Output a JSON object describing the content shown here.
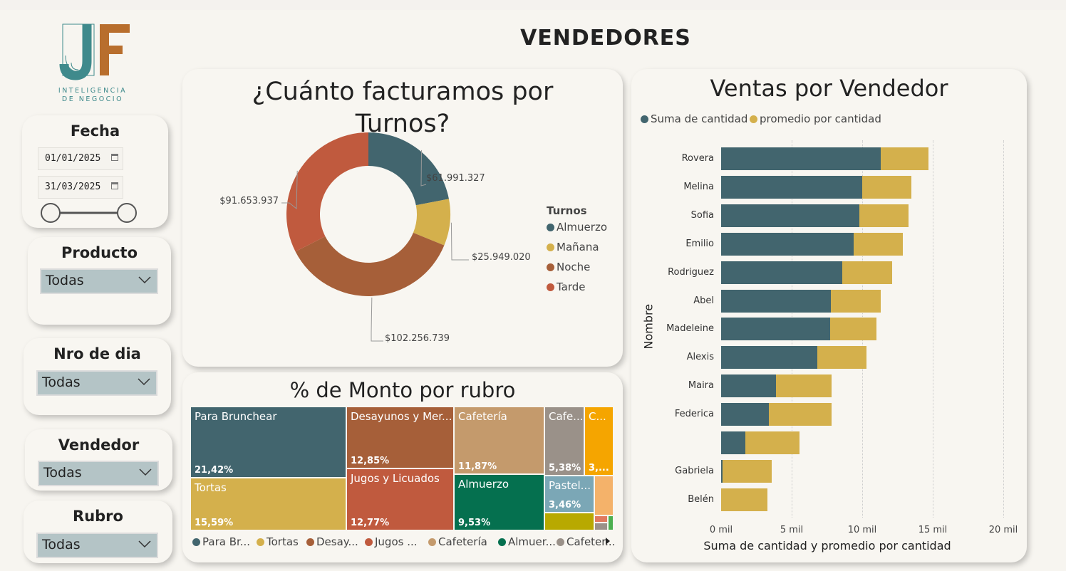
{
  "page_title": "VENDEDORES",
  "logo": {
    "line1": "INTELIGENCIA",
    "line2": "DE NEGOCIO",
    "letters": "JF"
  },
  "filters": {
    "fecha": {
      "title": "Fecha",
      "from": "01/01/2025",
      "to": "31/03/2025"
    },
    "producto": {
      "title": "Producto",
      "value": "Todas"
    },
    "nro_dia": {
      "title": "Nro de dia",
      "value": "Todas"
    },
    "vendedor": {
      "title": "Vendedor",
      "value": "Todas"
    },
    "rubro": {
      "title": "Rubro",
      "value": "Todas"
    }
  },
  "turnos_chart": {
    "title_line1": "¿Cuánto facturamos por",
    "title_line2": "Turnos?",
    "legend_title": "Turnos",
    "colors": {
      "Almuerzo": "#42656e",
      "Mañana": "#d4b04c",
      "Noche": "#a65f39",
      "Tarde": "#c05a3e"
    }
  },
  "rubro_chart": {
    "title": "% de Monto por rubro",
    "tiles": [
      {
        "label": "Para Brunchear",
        "pct": "21,42%",
        "color": "#42656e"
      },
      {
        "label": "Tortas",
        "pct": "15,59%",
        "color": "#d4b04c"
      },
      {
        "label": "Desayunos y Mer...",
        "pct": "12,85%",
        "color": "#a65f39"
      },
      {
        "label": "Jugos y Licuados",
        "pct": "12,77%",
        "color": "#c05a3e"
      },
      {
        "label": "Cafetería",
        "pct": "11,87%",
        "color": "#c49a6c"
      },
      {
        "label": "Almuerzo",
        "pct": "9,53%",
        "color": "#05704f"
      },
      {
        "label": "Cafe...",
        "pct": "5,38%",
        "color": "#9a9189"
      },
      {
        "label": "Pastel...",
        "pct": "3,46%",
        "color": "#7ba7b6"
      },
      {
        "label": "C...",
        "pct": "3,...",
        "color": "#f5a500"
      }
    ],
    "legend": [
      {
        "label": "Para Br...",
        "color": "#42656e"
      },
      {
        "label": "Tortas",
        "color": "#d4b04c"
      },
      {
        "label": "Desay...",
        "color": "#a65f39"
      },
      {
        "label": "Jugos ...",
        "color": "#c05a3e"
      },
      {
        "label": "Cafetería",
        "color": "#c49a6c"
      },
      {
        "label": "Almuer...",
        "color": "#05704f"
      },
      {
        "label": "Cafeter...",
        "color": "#9a9189"
      }
    ]
  },
  "vendedor_chart": {
    "title": "Ventas por Vendedor",
    "legend": [
      {
        "label": "Suma de cantidad",
        "color": "#42656e"
      },
      {
        "label": "promedio por cantidad",
        "color": "#d4b04c"
      }
    ],
    "xlabel": "Suma de cantidad y promedio por cantidad",
    "ylabel": "Nombre"
  },
  "chart_data": [
    {
      "type": "pie",
      "title": "¿Cuánto facturamos por Turnos?",
      "categories": [
        "Almuerzo",
        "Mañana",
        "Noche",
        "Tarde"
      ],
      "values": [
        61991327,
        25949020,
        102256739,
        91653937
      ],
      "value_labels": [
        "$61.991.327",
        "$25.949.020",
        "$102.256.739",
        "$91.653.937"
      ],
      "legend_title": "Turnos",
      "hole": true
    },
    {
      "type": "bar",
      "orientation": "horizontal",
      "stacked": true,
      "title": "Ventas por Vendedor",
      "categories": [
        "Rovera",
        "Melina",
        "Sofia",
        "Emilio",
        "Rodriguez",
        "Abel",
        "Madeleine",
        "Alexis",
        "Maira",
        "Federica",
        "",
        "Gabriela",
        "Belén"
      ],
      "series": [
        {
          "name": "Suma de cantidad",
          "values": [
            11300,
            10000,
            9800,
            9400,
            8600,
            7800,
            7750,
            6800,
            3900,
            3400,
            1700,
            100,
            0
          ]
        },
        {
          "name": "promedio por cantidad",
          "values": [
            3400,
            3500,
            3500,
            3500,
            3500,
            3500,
            3250,
            3500,
            3950,
            4450,
            3850,
            3500,
            3300
          ]
        }
      ],
      "xlabel": "Suma de cantidad y promedio por cantidad",
      "ylabel": "Nombre",
      "xlim": [
        0,
        20000
      ],
      "xticks": [
        "0 mil",
        "5 mil",
        "10 mil",
        "15 mil",
        "20 mil"
      ],
      "grid": true,
      "legend_position": "top-left"
    },
    {
      "type": "treemap",
      "title": "% de Monto por rubro",
      "categories": [
        "Para Brunchear",
        "Tortas",
        "Desayunos y Mer...",
        "Jugos y Licuados",
        "Cafetería",
        "Almuerzo",
        "Cafe...",
        "Pastel...",
        "C..."
      ],
      "values": [
        21.42,
        15.59,
        12.85,
        12.77,
        11.87,
        9.53,
        5.38,
        3.46,
        3.0
      ]
    }
  ]
}
